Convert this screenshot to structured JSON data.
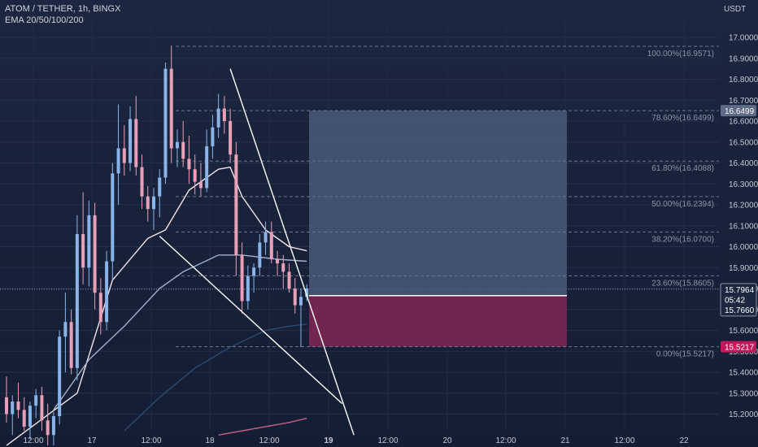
{
  "header": {
    "symbol_line": "ATOM / TETHER, 1h, BINGX",
    "indicator_line": "EMA 20/50/100/200",
    "currency": "USDT"
  },
  "colors": {
    "background": "#182238",
    "candle_up": "#8ab4e8",
    "candle_down": "#e8a0b8",
    "trendline": "#ffffff",
    "ema20": "#f2e6ec",
    "ema50": "#9fb0cc",
    "ema100": "#2d4a6e",
    "ema200": "#c06088",
    "profit_zone": "#4a5a78",
    "loss_zone": "#7a2552",
    "stop_badge": "#c2185b",
    "target_badge": "#5d6b86"
  },
  "chart_data": {
    "type": "candlestick",
    "title": "ATOM / TETHER, 1h, BINGX",
    "ylabel": "USDT",
    "ylim": [
      15.13,
      17.06
    ],
    "y_ticks": [
      "17.0000",
      "16.9000",
      "16.8000",
      "16.7000",
      "16.6000",
      "16.5000",
      "16.4000",
      "16.3000",
      "16.2000",
      "16.1000",
      "16.0000",
      "15.9000",
      "15.8000",
      "15.7000",
      "15.6000",
      "15.5000",
      "15.4000",
      "15.3000",
      "15.2000"
    ],
    "x_ticks": [
      "12:00",
      "17",
      "12:00",
      "18",
      "12:00",
      "19",
      "12:00",
      "20",
      "12:00",
      "21",
      "12:00",
      "22"
    ],
    "candles": [
      {
        "o": 15.28,
        "h": 15.38,
        "l": 15.16,
        "c": 15.2
      },
      {
        "o": 15.2,
        "h": 15.29,
        "l": 15.1,
        "c": 15.26
      },
      {
        "o": 15.26,
        "h": 15.35,
        "l": 15.18,
        "c": 15.22
      },
      {
        "o": 15.22,
        "h": 15.28,
        "l": 15.12,
        "c": 15.14
      },
      {
        "o": 15.14,
        "h": 15.26,
        "l": 15.08,
        "c": 15.24
      },
      {
        "o": 15.24,
        "h": 15.32,
        "l": 15.18,
        "c": 15.29
      },
      {
        "o": 15.29,
        "h": 15.33,
        "l": 15.12,
        "c": 15.17
      },
      {
        "o": 15.17,
        "h": 15.25,
        "l": 15.05,
        "c": 15.1
      },
      {
        "o": 15.1,
        "h": 15.21,
        "l": 15.05,
        "c": 15.19
      },
      {
        "o": 15.19,
        "h": 15.6,
        "l": 15.15,
        "c": 15.57
      },
      {
        "o": 15.57,
        "h": 15.78,
        "l": 15.4,
        "c": 15.64
      },
      {
        "o": 15.64,
        "h": 15.7,
        "l": 15.39,
        "c": 15.42
      },
      {
        "o": 15.42,
        "h": 16.15,
        "l": 15.36,
        "c": 16.06
      },
      {
        "o": 16.06,
        "h": 16.26,
        "l": 15.82,
        "c": 15.9
      },
      {
        "o": 15.9,
        "h": 16.22,
        "l": 15.81,
        "c": 16.15
      },
      {
        "o": 16.15,
        "h": 16.21,
        "l": 15.7,
        "c": 15.78
      },
      {
        "o": 15.78,
        "h": 15.85,
        "l": 15.58,
        "c": 15.64
      },
      {
        "o": 15.64,
        "h": 15.98,
        "l": 15.6,
        "c": 15.93
      },
      {
        "o": 15.93,
        "h": 16.4,
        "l": 15.84,
        "c": 16.35
      },
      {
        "o": 16.35,
        "h": 16.68,
        "l": 16.2,
        "c": 16.47
      },
      {
        "o": 16.47,
        "h": 16.58,
        "l": 16.34,
        "c": 16.4
      },
      {
        "o": 16.4,
        "h": 16.67,
        "l": 16.36,
        "c": 16.61
      },
      {
        "o": 16.61,
        "h": 16.72,
        "l": 16.34,
        "c": 16.38
      },
      {
        "o": 16.38,
        "h": 16.44,
        "l": 16.18,
        "c": 16.24
      },
      {
        "o": 16.24,
        "h": 16.29,
        "l": 16.12,
        "c": 16.18
      },
      {
        "o": 16.18,
        "h": 16.28,
        "l": 16.08,
        "c": 16.24
      },
      {
        "o": 16.24,
        "h": 16.37,
        "l": 16.14,
        "c": 16.33
      },
      {
        "o": 16.33,
        "h": 16.88,
        "l": 16.3,
        "c": 16.85
      },
      {
        "o": 16.85,
        "h": 16.96,
        "l": 16.4,
        "c": 16.47
      },
      {
        "o": 16.47,
        "h": 16.56,
        "l": 16.38,
        "c": 16.5
      },
      {
        "o": 16.5,
        "h": 16.6,
        "l": 16.38,
        "c": 16.42
      },
      {
        "o": 16.42,
        "h": 16.53,
        "l": 16.3,
        "c": 16.37
      },
      {
        "o": 16.37,
        "h": 16.44,
        "l": 16.25,
        "c": 16.31
      },
      {
        "o": 16.31,
        "h": 16.4,
        "l": 16.24,
        "c": 16.28
      },
      {
        "o": 16.28,
        "h": 16.56,
        "l": 16.26,
        "c": 16.48
      },
      {
        "o": 16.48,
        "h": 16.63,
        "l": 16.42,
        "c": 16.57
      },
      {
        "o": 16.57,
        "h": 16.73,
        "l": 16.52,
        "c": 16.66
      },
      {
        "o": 16.66,
        "h": 16.72,
        "l": 16.54,
        "c": 16.6
      },
      {
        "o": 16.6,
        "h": 16.66,
        "l": 16.4,
        "c": 16.44
      },
      {
        "o": 16.44,
        "h": 16.5,
        "l": 15.86,
        "c": 15.96
      },
      {
        "o": 15.96,
        "h": 16.02,
        "l": 15.68,
        "c": 15.74
      },
      {
        "o": 15.74,
        "h": 15.91,
        "l": 15.7,
        "c": 15.86
      },
      {
        "o": 15.86,
        "h": 15.92,
        "l": 15.78,
        "c": 15.9
      },
      {
        "o": 15.9,
        "h": 16.06,
        "l": 15.86,
        "c": 16.02
      },
      {
        "o": 16.02,
        "h": 16.12,
        "l": 15.96,
        "c": 16.07
      },
      {
        "o": 16.07,
        "h": 16.12,
        "l": 15.92,
        "c": 15.94
      },
      {
        "o": 15.94,
        "h": 15.98,
        "l": 15.86,
        "c": 15.92
      },
      {
        "o": 15.92,
        "h": 15.96,
        "l": 15.8,
        "c": 15.88
      },
      {
        "o": 15.88,
        "h": 15.92,
        "l": 15.78,
        "c": 15.8
      },
      {
        "o": 15.8,
        "h": 15.85,
        "l": 15.68,
        "c": 15.72
      },
      {
        "o": 15.72,
        "h": 15.8,
        "l": 15.52,
        "c": 15.76
      },
      {
        "o": 15.76,
        "h": 15.82,
        "l": 15.74,
        "c": 15.8
      }
    ],
    "ema_series": [
      {
        "period": 20,
        "values": [
          [
            0,
            15.05
          ],
          [
            12,
            15.3
          ],
          [
            18,
            15.84
          ],
          [
            24,
            16.04
          ],
          [
            27,
            16.08
          ],
          [
            31,
            16.27
          ],
          [
            36,
            16.37
          ],
          [
            38,
            16.38
          ],
          [
            40,
            16.24
          ],
          [
            44,
            16.08
          ],
          [
            48,
            16.0
          ],
          [
            51,
            15.98
          ]
        ]
      },
      {
        "period": 50,
        "values": [
          [
            8,
            15.22
          ],
          [
            14,
            15.46
          ],
          [
            20,
            15.62
          ],
          [
            26,
            15.8
          ],
          [
            30,
            15.88
          ],
          [
            36,
            15.96
          ],
          [
            40,
            15.96
          ],
          [
            46,
            15.94
          ],
          [
            51,
            15.93
          ]
        ]
      },
      {
        "period": 100,
        "values": [
          [
            20,
            15.12
          ],
          [
            26,
            15.28
          ],
          [
            32,
            15.42
          ],
          [
            38,
            15.52
          ],
          [
            44,
            15.6
          ],
          [
            48,
            15.62
          ],
          [
            51,
            15.63
          ]
        ]
      },
      {
        "period": 200,
        "values": [
          [
            36,
            15.1
          ],
          [
            42,
            15.13
          ],
          [
            48,
            15.16
          ],
          [
            51,
            15.18
          ]
        ]
      }
    ],
    "trendlines": [
      {
        "from_index": 38,
        "from_price": 16.85,
        "to_index": 59,
        "to_price": 15.1
      },
      {
        "from_index": 26,
        "from_price": 16.05,
        "to_index": 57,
        "to_price": 15.25
      }
    ],
    "fibonacci": {
      "labels": [
        "100.00%(16.9571)",
        "78.60%(16.6499)",
        "61.80%(16.4088)",
        "50.00%(16.2394)",
        "38.20%(16.0700)",
        "23.60%(15.8605)",
        "0.00%(15.5217)"
      ],
      "prices": [
        16.9571,
        16.6499,
        16.4088,
        16.2394,
        16.07,
        15.8605,
        15.5217
      ]
    },
    "position": {
      "entry": 15.766,
      "target": 16.6499,
      "stop": 15.5217
    },
    "price_labels": {
      "target": "16.6499",
      "last_price": "15.7964",
      "countdown": "05:42",
      "entry": "15.7660",
      "stop": "15.5217"
    }
  }
}
